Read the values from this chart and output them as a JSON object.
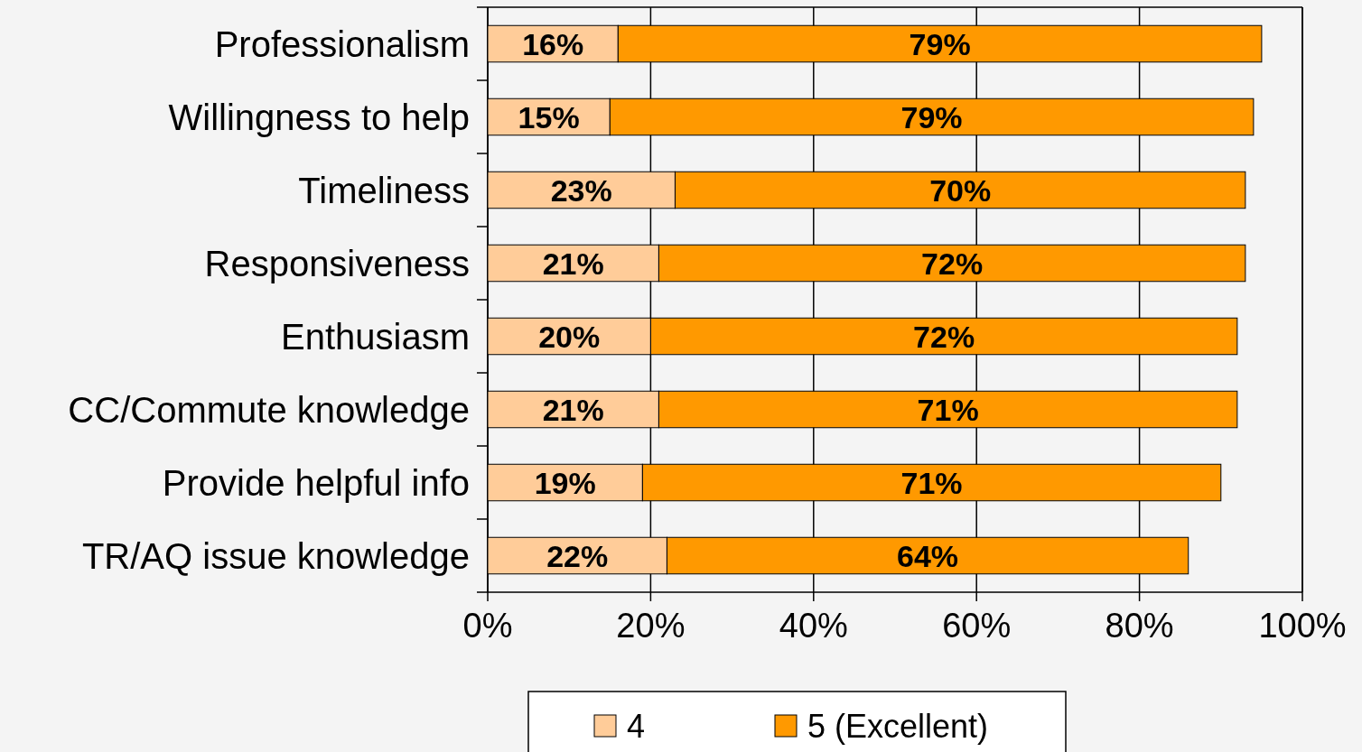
{
  "chart_data": {
    "type": "bar",
    "orientation": "horizontal",
    "stacked": true,
    "categories": [
      "Professionalism",
      "Willingness to help",
      "Timeliness",
      "Responsiveness",
      "Enthusiasm",
      "CC/Commute knowledge",
      "Provide helpful info",
      "TR/AQ issue knowledge"
    ],
    "series": [
      {
        "name": "4",
        "color": "#ffcc99",
        "values": [
          16,
          15,
          23,
          21,
          20,
          21,
          19,
          22
        ],
        "value_labels": [
          "16%",
          "15%",
          "23%",
          "21%",
          "20%",
          "21%",
          "19%",
          "22%"
        ]
      },
      {
        "name": "5 (Excellent)",
        "color": "#ff9900",
        "values": [
          79,
          79,
          70,
          72,
          72,
          71,
          71,
          64
        ],
        "value_labels": [
          "79%",
          "79%",
          "70%",
          "72%",
          "72%",
          "71%",
          "71%",
          "64%"
        ]
      }
    ],
    "xlim": [
      0,
      100
    ],
    "xticks": [
      {
        "value": 0,
        "label": "0%"
      },
      {
        "value": 20,
        "label": "20%"
      },
      {
        "value": 40,
        "label": "40%"
      },
      {
        "value": 60,
        "label": "60%"
      },
      {
        "value": 80,
        "label": "80%"
      },
      {
        "value": 100,
        "label": "100%"
      }
    ],
    "grid": "x",
    "legend": "bottom"
  }
}
